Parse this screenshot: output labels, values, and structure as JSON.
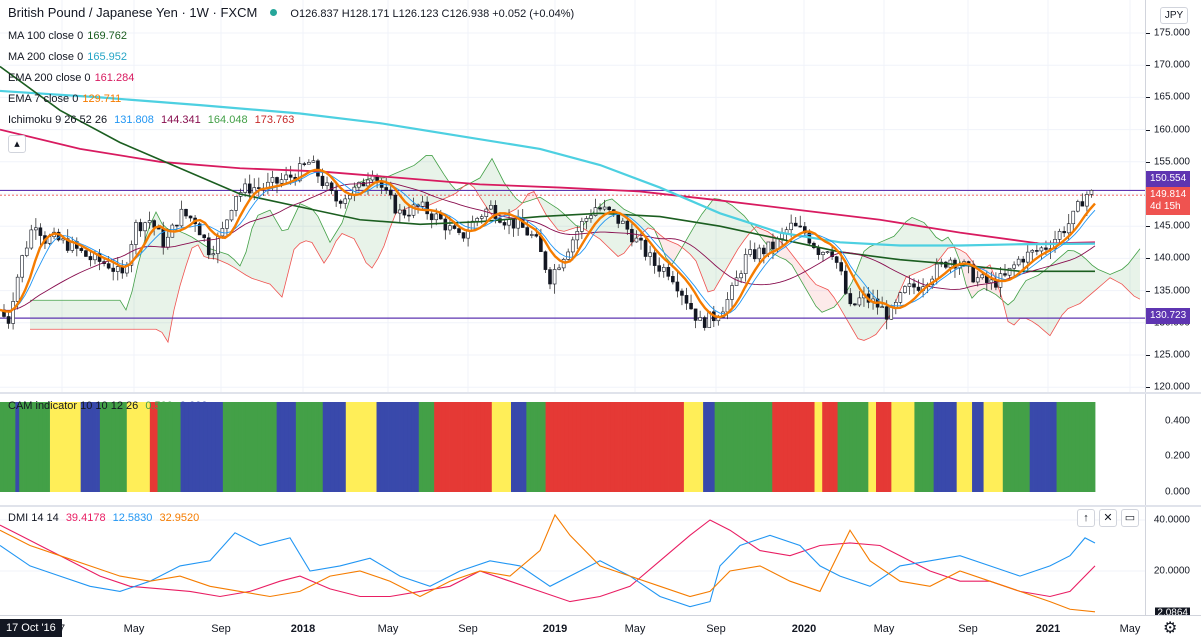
{
  "header": {
    "symbol": "British Pound / Japanese Yen · 1W · FXCM",
    "ohlc": "O126.837 H128.171 L126.123 C126.938 +0.052 (+0.04%)",
    "currency": "JPY"
  },
  "indicators": [
    {
      "name": "MA 100 close 0",
      "value": "169.762",
      "color": "#1b5e20"
    },
    {
      "name": "MA 200 close 0",
      "value": "165.952",
      "color": "#4dd0e1"
    },
    {
      "name": "EMA 200 close 0",
      "value": "161.284",
      "color": "#d81b60"
    },
    {
      "name": "EMA 7 close 0",
      "value": "129.711",
      "color": "#f57c00"
    }
  ],
  "ichimoku": {
    "name": "Ichimoku 9 26 52 26",
    "v1": "131.808",
    "v2": "144.341",
    "v3": "164.048",
    "v4": "173.763"
  },
  "price_axis": {
    "labels": [
      "175.000",
      "170.000",
      "165.000",
      "160.000",
      "155.000",
      "150.000",
      "145.000",
      "140.000",
      "135.000",
      "130.000",
      "125.000",
      "120.000"
    ]
  },
  "price_boxes": {
    "upper_line": "150.554",
    "current": "149.814",
    "countdown": "4d 15h",
    "lower_line": "130.723"
  },
  "cam": {
    "label": "CAM indicator 10 10 12 26",
    "v1": "0.500",
    "v2": "0.000",
    "axis": [
      "0.400",
      "0.200",
      "0.000"
    ]
  },
  "dmi": {
    "label": "DMI 14 14",
    "v1": "39.4178",
    "v2": "12.5830",
    "v3": "32.9520",
    "axis": [
      "40.0000",
      "20.0000",
      "2.0864"
    ]
  },
  "time_axis": {
    "start": "17 Oct '16",
    "labels": [
      "7",
      "May",
      "Sep",
      "2018",
      "May",
      "Sep",
      "2019",
      "May",
      "Sep",
      "2020",
      "May",
      "Sep",
      "2021",
      "May"
    ]
  },
  "colors": {
    "ema7": "#f57c00",
    "ma100": "#1b5e20",
    "ma200": "#4dd0e1",
    "ema200": "#d81b60",
    "hline": "#5e35b1",
    "cam_green": "#43a047",
    "cam_blue": "#3949ab",
    "cam_red": "#e53935",
    "cam_yellow": "#ffee58",
    "dmi_plus": "#2196f3",
    "dmi_minus": "#e91e63",
    "adx": "#f57c00"
  },
  "buttons": {
    "up": "↑",
    "close": "✕",
    "max": "▭"
  }
}
